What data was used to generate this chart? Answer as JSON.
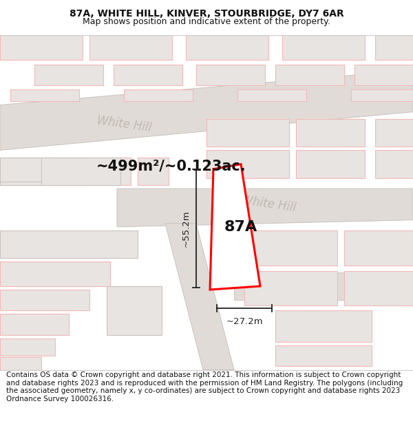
{
  "title": "87A, WHITE HILL, KINVER, STOURBRIDGE, DY7 6AR",
  "subtitle": "Map shows position and indicative extent of the property.",
  "footer": "Contains OS data © Crown copyright and database right 2021. This information is subject to Crown copyright and database rights 2023 and is reproduced with the permission of HM Land Registry. The polygons (including the associated geometry, namely x, y co-ordinates) are subject to Crown copyright and database rights 2023 Ordnance Survey 100026316.",
  "area_label": "~499m²/~0.123ac.",
  "property_label": "87A",
  "dim_width": "~27.2m",
  "dim_height": "~55.2m",
  "road_label_1": "White Hill",
  "road_label_2": "White Hill",
  "bg_color": "#ffffff",
  "map_bg": "#f7f4f2",
  "road_color": "#e0dbd7",
  "road_edge": "#c9c3be",
  "building_fill": "#e8e4e1",
  "building_edge": "#c9c3be",
  "plot_red_edge": "#ff0000",
  "plot_fill": "#ffffff",
  "pink_edge": "#f4b8b8",
  "dim_color": "#222222",
  "title_color": "#111111",
  "road_text_color": "#c0b8b0",
  "area_text_color": "#111111",
  "title_fontsize": 10,
  "subtitle_fontsize": 9,
  "footer_fontsize": 7.5,
  "area_fontsize": 15,
  "label_fontsize": 16,
  "road_fontsize": 12,
  "dim_fontsize": 9.5
}
